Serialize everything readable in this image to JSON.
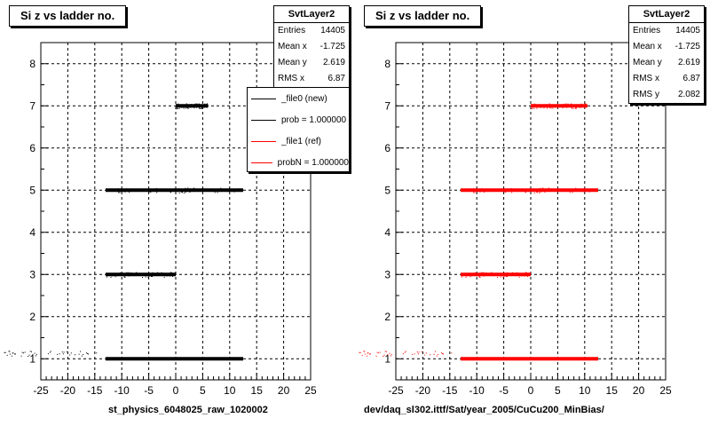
{
  "chart_data": [
    {
      "type": "scatter",
      "title": "Si z vs ladder no.",
      "xlabel": "st_physics_6048025_raw_1020002",
      "ylabel": "",
      "xlim": [
        -25,
        25
      ],
      "ylim": [
        0.5,
        8.5
      ],
      "xticks": [
        -25,
        -20,
        -15,
        -10,
        -5,
        0,
        5,
        10,
        15,
        20,
        25
      ],
      "yticks": [
        1,
        2,
        3,
        4,
        5,
        6,
        7,
        8
      ],
      "grid": true,
      "marker_color": "#000000",
      "series": [
        {
          "name": "_file0 (new)",
          "color": "#000000",
          "bands": [
            {
              "y": 1,
              "x_range": [
                -13,
                12.5
              ]
            },
            {
              "y": 3,
              "x_range": [
                -13,
                0
              ]
            },
            {
              "y": 5,
              "x_range": [
                -13,
                12.5
              ]
            },
            {
              "y": 7,
              "x_range": [
                0,
                6
              ]
            }
          ]
        }
      ],
      "stats": {
        "title": "SvtLayer2",
        "rows": [
          {
            "label": "Entries",
            "value": "14405"
          },
          {
            "label": "Mean x",
            "value": "-1.725"
          },
          {
            "label": "Mean y",
            "value": "2.619"
          },
          {
            "label": "RMS x",
            "value": "6.87"
          }
        ]
      },
      "legend": {
        "placement": "top-right",
        "entries": [
          {
            "label": "_file0 (new)",
            "color": "#000000"
          },
          {
            "label": "prob = 1.000000",
            "color": "#000000"
          },
          {
            "label": "_file1 (ref)",
            "color": "#ff0000"
          },
          {
            "label": "probN = 1.000000",
            "color": "#ff0000"
          }
        ]
      }
    },
    {
      "type": "scatter",
      "title": "Si z vs ladder no.",
      "xlabel": "dev/daq_sl302.ittf/Sat/year_2005/CuCu200_MinBias/",
      "ylabel": "",
      "xlim": [
        -25,
        25
      ],
      "ylim": [
        0.5,
        8.5
      ],
      "xticks": [
        -25,
        -20,
        -15,
        -10,
        -5,
        0,
        5,
        10,
        15,
        20,
        25
      ],
      "yticks": [
        1,
        2,
        3,
        4,
        5,
        6,
        7,
        8
      ],
      "grid": true,
      "marker_color": "#ff0000",
      "series": [
        {
          "name": "_file1 (ref)",
          "color": "#ff0000",
          "bands": [
            {
              "y": 1,
              "x_range": [
                -13,
                12.5
              ]
            },
            {
              "y": 3,
              "x_range": [
                -13,
                0
              ]
            },
            {
              "y": 5,
              "x_range": [
                -13,
                12.5
              ]
            },
            {
              "y": 7,
              "x_range": [
                0,
                10.5
              ]
            }
          ]
        }
      ],
      "stats": {
        "title": "SvtLayer2",
        "rows": [
          {
            "label": "Entries",
            "value": "14405"
          },
          {
            "label": "Mean x",
            "value": "-1.725"
          },
          {
            "label": "Mean y",
            "value": "2.619"
          },
          {
            "label": "RMS x",
            "value": "6.87"
          },
          {
            "label": "RMS y",
            "value": "2.082"
          }
        ]
      }
    }
  ]
}
